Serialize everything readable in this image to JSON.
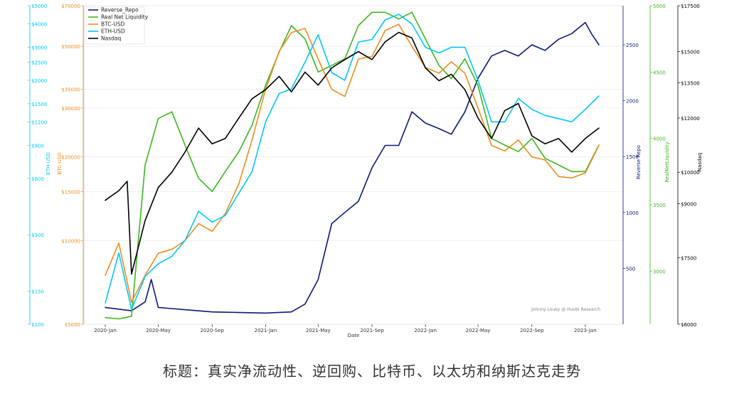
{
  "chart_data": {
    "type": "line",
    "xlabel": "Date",
    "x_ticks": [
      "2020-Jan",
      "2020-May",
      "2020-Sep",
      "2021-Jan",
      "2021-May",
      "2021-Sep",
      "2022-Jan",
      "2022-May",
      "2022-Sep",
      "2023-Jan"
    ],
    "watermark": "Johnny Louey @ Huobi Research",
    "grid": true,
    "legend_position": "top-left",
    "axes": [
      {
        "id": "eth",
        "label": "ETH-USD",
        "side": "left",
        "color": "#00c8ff",
        "scale": "log",
        "range": [
          100,
          5000
        ],
        "ticks": [
          {
            "v": 100,
            "t": "$100"
          },
          {
            "v": 150,
            "t": "$150"
          },
          {
            "v": 300,
            "t": "$300"
          },
          {
            "v": 600,
            "t": "$600"
          },
          {
            "v": 900,
            "t": "$900"
          },
          {
            "v": 1200,
            "t": "$1200"
          },
          {
            "v": 1500,
            "t": "$1500"
          },
          {
            "v": 2000,
            "t": "$2000"
          },
          {
            "v": 2500,
            "t": "$2500"
          },
          {
            "v": 3000,
            "t": "$3000"
          },
          {
            "v": 4000,
            "t": "$4000"
          },
          {
            "v": 5000,
            "t": "$5000"
          }
        ]
      },
      {
        "id": "btc",
        "label": "BTC-USD",
        "side": "left",
        "color": "#f28c1e",
        "scale": "log",
        "range": [
          5000,
          70000
        ],
        "ticks": [
          {
            "v": 5000,
            "t": "$5000"
          },
          {
            "v": 10000,
            "t": "$10000"
          },
          {
            "v": 15000,
            "t": "$15000"
          },
          {
            "v": 20000,
            "t": "$20000"
          },
          {
            "v": 30000,
            "t": "$30000"
          },
          {
            "v": 35000,
            "t": "$35000"
          },
          {
            "v": 50000,
            "t": "$50000"
          },
          {
            "v": 70000,
            "t": "$70000"
          }
        ]
      },
      {
        "id": "rrp",
        "label": "Reverse Repo",
        "side": "right",
        "color": "#0b1a7a",
        "scale": "linear",
        "range": [
          0,
          2850
        ],
        "ticks": [
          {
            "v": 500,
            "t": "500"
          },
          {
            "v": 1000,
            "t": "1000"
          },
          {
            "v": 1500,
            "t": "1500"
          },
          {
            "v": 2000,
            "t": "2000"
          },
          {
            "v": 2500,
            "t": "2500"
          }
        ]
      },
      {
        "id": "rnl",
        "label": "RealNetLiquidity",
        "side": "right",
        "color": "#3ab81c",
        "scale": "linear",
        "range": [
          2600,
          5000
        ],
        "ticks": [
          {
            "v": 3000,
            "t": "3000"
          },
          {
            "v": 3500,
            "t": "3500"
          },
          {
            "v": 4000,
            "t": "4000"
          },
          {
            "v": 4500,
            "t": "4500"
          },
          {
            "v": 5000,
            "t": "5000"
          }
        ]
      },
      {
        "id": "ndq",
        "label": "Nasdaq",
        "side": "right",
        "color": "#000000",
        "scale": "log",
        "range": [
          6000,
          17500
        ],
        "ticks": [
          {
            "v": 6000,
            "t": "$6000"
          },
          {
            "v": 7500,
            "t": "$7500"
          },
          {
            "v": 9000,
            "t": "$9000"
          },
          {
            "v": 10000,
            "t": "$10000"
          },
          {
            "v": 12000,
            "t": "$12000"
          },
          {
            "v": 13500,
            "t": "$13500"
          },
          {
            "v": 15000,
            "t": "$15000"
          },
          {
            "v": 17500,
            "t": "$17500"
          }
        ]
      }
    ],
    "series": [
      {
        "name": "Reverse_Repo",
        "axis": "rrp",
        "color": "#0b1a7a",
        "x": [
          "2020-01",
          "2020-03",
          "2020-04",
          "2020-04-15",
          "2020-05",
          "2020-06",
          "2020-09",
          "2021-01",
          "2021-03",
          "2021-04",
          "2021-05",
          "2021-06",
          "2021-07",
          "2021-08",
          "2021-09",
          "2021-10",
          "2021-11",
          "2021-12",
          "2022-01",
          "2022-02",
          "2022-03",
          "2022-04",
          "2022-05",
          "2022-06",
          "2022-07",
          "2022-08",
          "2022-09",
          "2022-10",
          "2022-11",
          "2022-12",
          "2023-01",
          "2023-01-15",
          "2023-02"
        ],
        "values": [
          150,
          120,
          200,
          400,
          150,
          140,
          110,
          100,
          110,
          180,
          400,
          900,
          1000,
          1100,
          1400,
          1600,
          1600,
          1900,
          1800,
          1750,
          1700,
          1900,
          2200,
          2400,
          2450,
          2400,
          2500,
          2450,
          2550,
          2600,
          2700,
          2600,
          2500
        ]
      },
      {
        "name": "Real Net Liquidity",
        "axis": "rnl",
        "color": "#3ab81c",
        "x": [
          "2020-01",
          "2020-02",
          "2020-03",
          "2020-04",
          "2020-05",
          "2020-06",
          "2020-07",
          "2020-08",
          "2020-09",
          "2020-10",
          "2020-11",
          "2020-12",
          "2021-01",
          "2021-02",
          "2021-03",
          "2021-04",
          "2021-05",
          "2021-06",
          "2021-07",
          "2021-08",
          "2021-09",
          "2021-10",
          "2021-11",
          "2021-12",
          "2022-01",
          "2022-02",
          "2022-03",
          "2022-04",
          "2022-05",
          "2022-06",
          "2022-07",
          "2022-08",
          "2022-09",
          "2022-10",
          "2022-11",
          "2022-12",
          "2023-01",
          "2023-02"
        ],
        "values": [
          2650,
          2640,
          2660,
          3800,
          4150,
          4200,
          3950,
          3700,
          3600,
          3750,
          3900,
          4100,
          4400,
          4650,
          4850,
          4750,
          4500,
          4550,
          4600,
          4850,
          4950,
          4950,
          4900,
          4950,
          4750,
          4550,
          4450,
          4600,
          4400,
          4000,
          3950,
          3900,
          4000,
          3850,
          3800,
          3750,
          3750,
          3950
        ]
      },
      {
        "name": "BTC-USD",
        "axis": "btc",
        "color": "#f28c1e",
        "x": [
          "2020-01",
          "2020-02",
          "2020-03",
          "2020-04",
          "2020-05",
          "2020-06",
          "2020-07",
          "2020-08",
          "2020-09",
          "2020-10",
          "2020-11",
          "2020-12",
          "2021-01",
          "2021-02",
          "2021-03",
          "2021-04",
          "2021-05",
          "2021-06",
          "2021-07",
          "2021-08",
          "2021-09",
          "2021-10",
          "2021-11",
          "2021-12",
          "2022-01",
          "2022-02",
          "2022-03",
          "2022-04",
          "2022-05",
          "2022-06",
          "2022-07",
          "2022-08",
          "2022-09",
          "2022-10",
          "2022-11",
          "2022-12",
          "2023-01",
          "2023-02"
        ],
        "values": [
          7500,
          9800,
          6000,
          7500,
          9000,
          9300,
          10000,
          11500,
          10800,
          12500,
          16000,
          23000,
          35000,
          48000,
          56000,
          58000,
          45000,
          35000,
          33000,
          45000,
          46000,
          57000,
          60000,
          50000,
          42000,
          40000,
          44000,
          40000,
          30000,
          22000,
          21000,
          23000,
          20000,
          19500,
          17000,
          16800,
          17500,
          22000
        ]
      },
      {
        "name": "ETH-USD",
        "axis": "eth",
        "color": "#00c8ff",
        "x": [
          "2020-01",
          "2020-02",
          "2020-03",
          "2020-04",
          "2020-05",
          "2020-06",
          "2020-07",
          "2020-08",
          "2020-09",
          "2020-10",
          "2020-11",
          "2020-12",
          "2021-01",
          "2021-02",
          "2021-03",
          "2021-04",
          "2021-05",
          "2021-06",
          "2021-07",
          "2021-08",
          "2021-09",
          "2021-10",
          "2021-11",
          "2021-12",
          "2022-01",
          "2022-02",
          "2022-03",
          "2022-04",
          "2022-05",
          "2022-06",
          "2022-07",
          "2022-08",
          "2022-09",
          "2022-10",
          "2022-11",
          "2022-12",
          "2023-01",
          "2023-02"
        ],
        "values": [
          130,
          240,
          120,
          180,
          210,
          230,
          280,
          400,
          350,
          380,
          500,
          650,
          1200,
          1700,
          1800,
          2500,
          3500,
          2200,
          2000,
          3200,
          3300,
          4200,
          4500,
          4000,
          3000,
          2800,
          3000,
          3000,
          2000,
          1200,
          1200,
          1600,
          1400,
          1300,
          1250,
          1200,
          1400,
          1650
        ]
      },
      {
        "name": "Nasdaq",
        "axis": "ndq",
        "color": "#000000",
        "x": [
          "2020-01",
          "2020-02",
          "2020-02-20",
          "2020-03",
          "2020-04",
          "2020-05",
          "2020-06",
          "2020-07",
          "2020-08",
          "2020-09",
          "2020-10",
          "2020-11",
          "2020-12",
          "2021-01",
          "2021-02",
          "2021-03",
          "2021-04",
          "2021-05",
          "2021-06",
          "2021-07",
          "2021-08",
          "2021-09",
          "2021-10",
          "2021-11",
          "2021-12",
          "2022-01",
          "2022-02",
          "2022-03",
          "2022-04",
          "2022-05",
          "2022-06",
          "2022-07",
          "2022-08",
          "2022-09",
          "2022-10",
          "2022-11",
          "2022-12",
          "2023-01",
          "2023-02"
        ],
        "values": [
          9100,
          9400,
          9700,
          7100,
          8500,
          9500,
          10000,
          10700,
          11600,
          11000,
          11200,
          12000,
          12800,
          13200,
          13800,
          13100,
          14000,
          13400,
          14200,
          14600,
          15000,
          14600,
          15500,
          16000,
          15700,
          14200,
          13600,
          13900,
          13200,
          12000,
          11200,
          12300,
          12600,
          11300,
          11000,
          11200,
          10700,
          11200,
          11600
        ]
      }
    ]
  },
  "caption": {
    "title": "标题：真实净流动性、逆回购、比特币、以太坊和纳斯达克走势"
  }
}
